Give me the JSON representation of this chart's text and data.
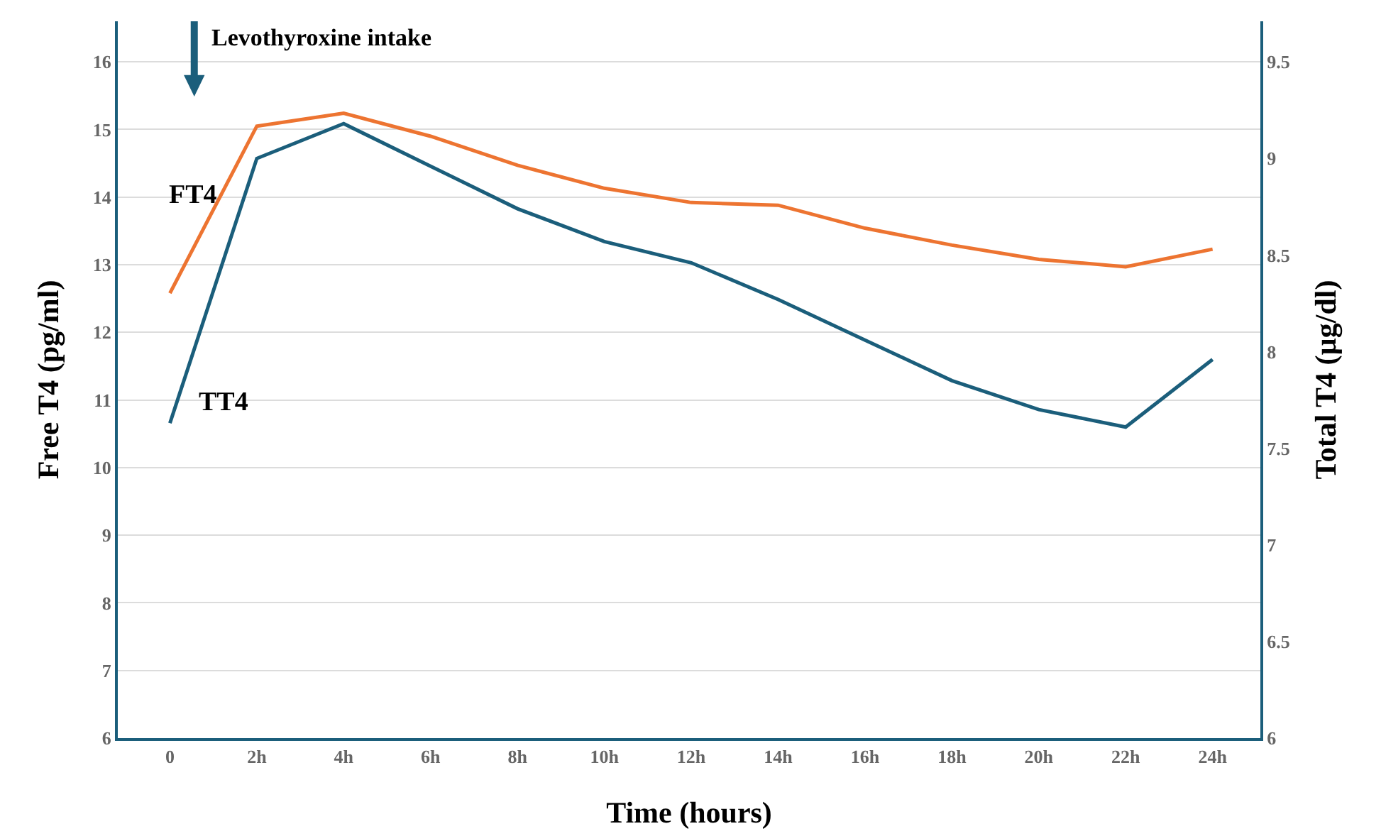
{
  "chart_data": {
    "type": "line",
    "xlabel": "Time (hours)",
    "ylabel": "Free T4 (pg/ml)",
    "y2label": "Total T4 (µg/dl)",
    "categories": [
      "0",
      "2h",
      "4h",
      "6h",
      "8h",
      "10h",
      "12h",
      "14h",
      "16h",
      "18h",
      "20h",
      "22h",
      "24h"
    ],
    "series": [
      {
        "name": "FT4",
        "color": "#ed7431",
        "values": [
          12.58,
          15.05,
          15.24,
          14.9,
          14.47,
          14.13,
          13.92,
          13.88,
          13.54,
          13.29,
          13.08,
          12.97,
          13.23
        ]
      },
      {
        "name": "TT4",
        "color": "#1b5e7b",
        "axis": "y2",
        "values": [
          7.63,
          9.0,
          9.18,
          8.96,
          8.74,
          8.57,
          8.46,
          8.27,
          8.06,
          7.85,
          7.7,
          7.61,
          7.96
        ]
      }
    ],
    "ylim": [
      6,
      16.6
    ],
    "yticks": [
      6,
      7,
      8,
      9,
      10,
      11,
      12,
      13,
      14,
      15,
      16
    ],
    "y2lim": [
      6,
      9.71
    ],
    "y2ticks": [
      6,
      6.5,
      7,
      7.5,
      8,
      8.5,
      9,
      9.5
    ],
    "annotations": [
      "Levothyroxine intake"
    ],
    "grid": "y",
    "legend": false,
    "marker": "none",
    "line_style": "solid"
  }
}
